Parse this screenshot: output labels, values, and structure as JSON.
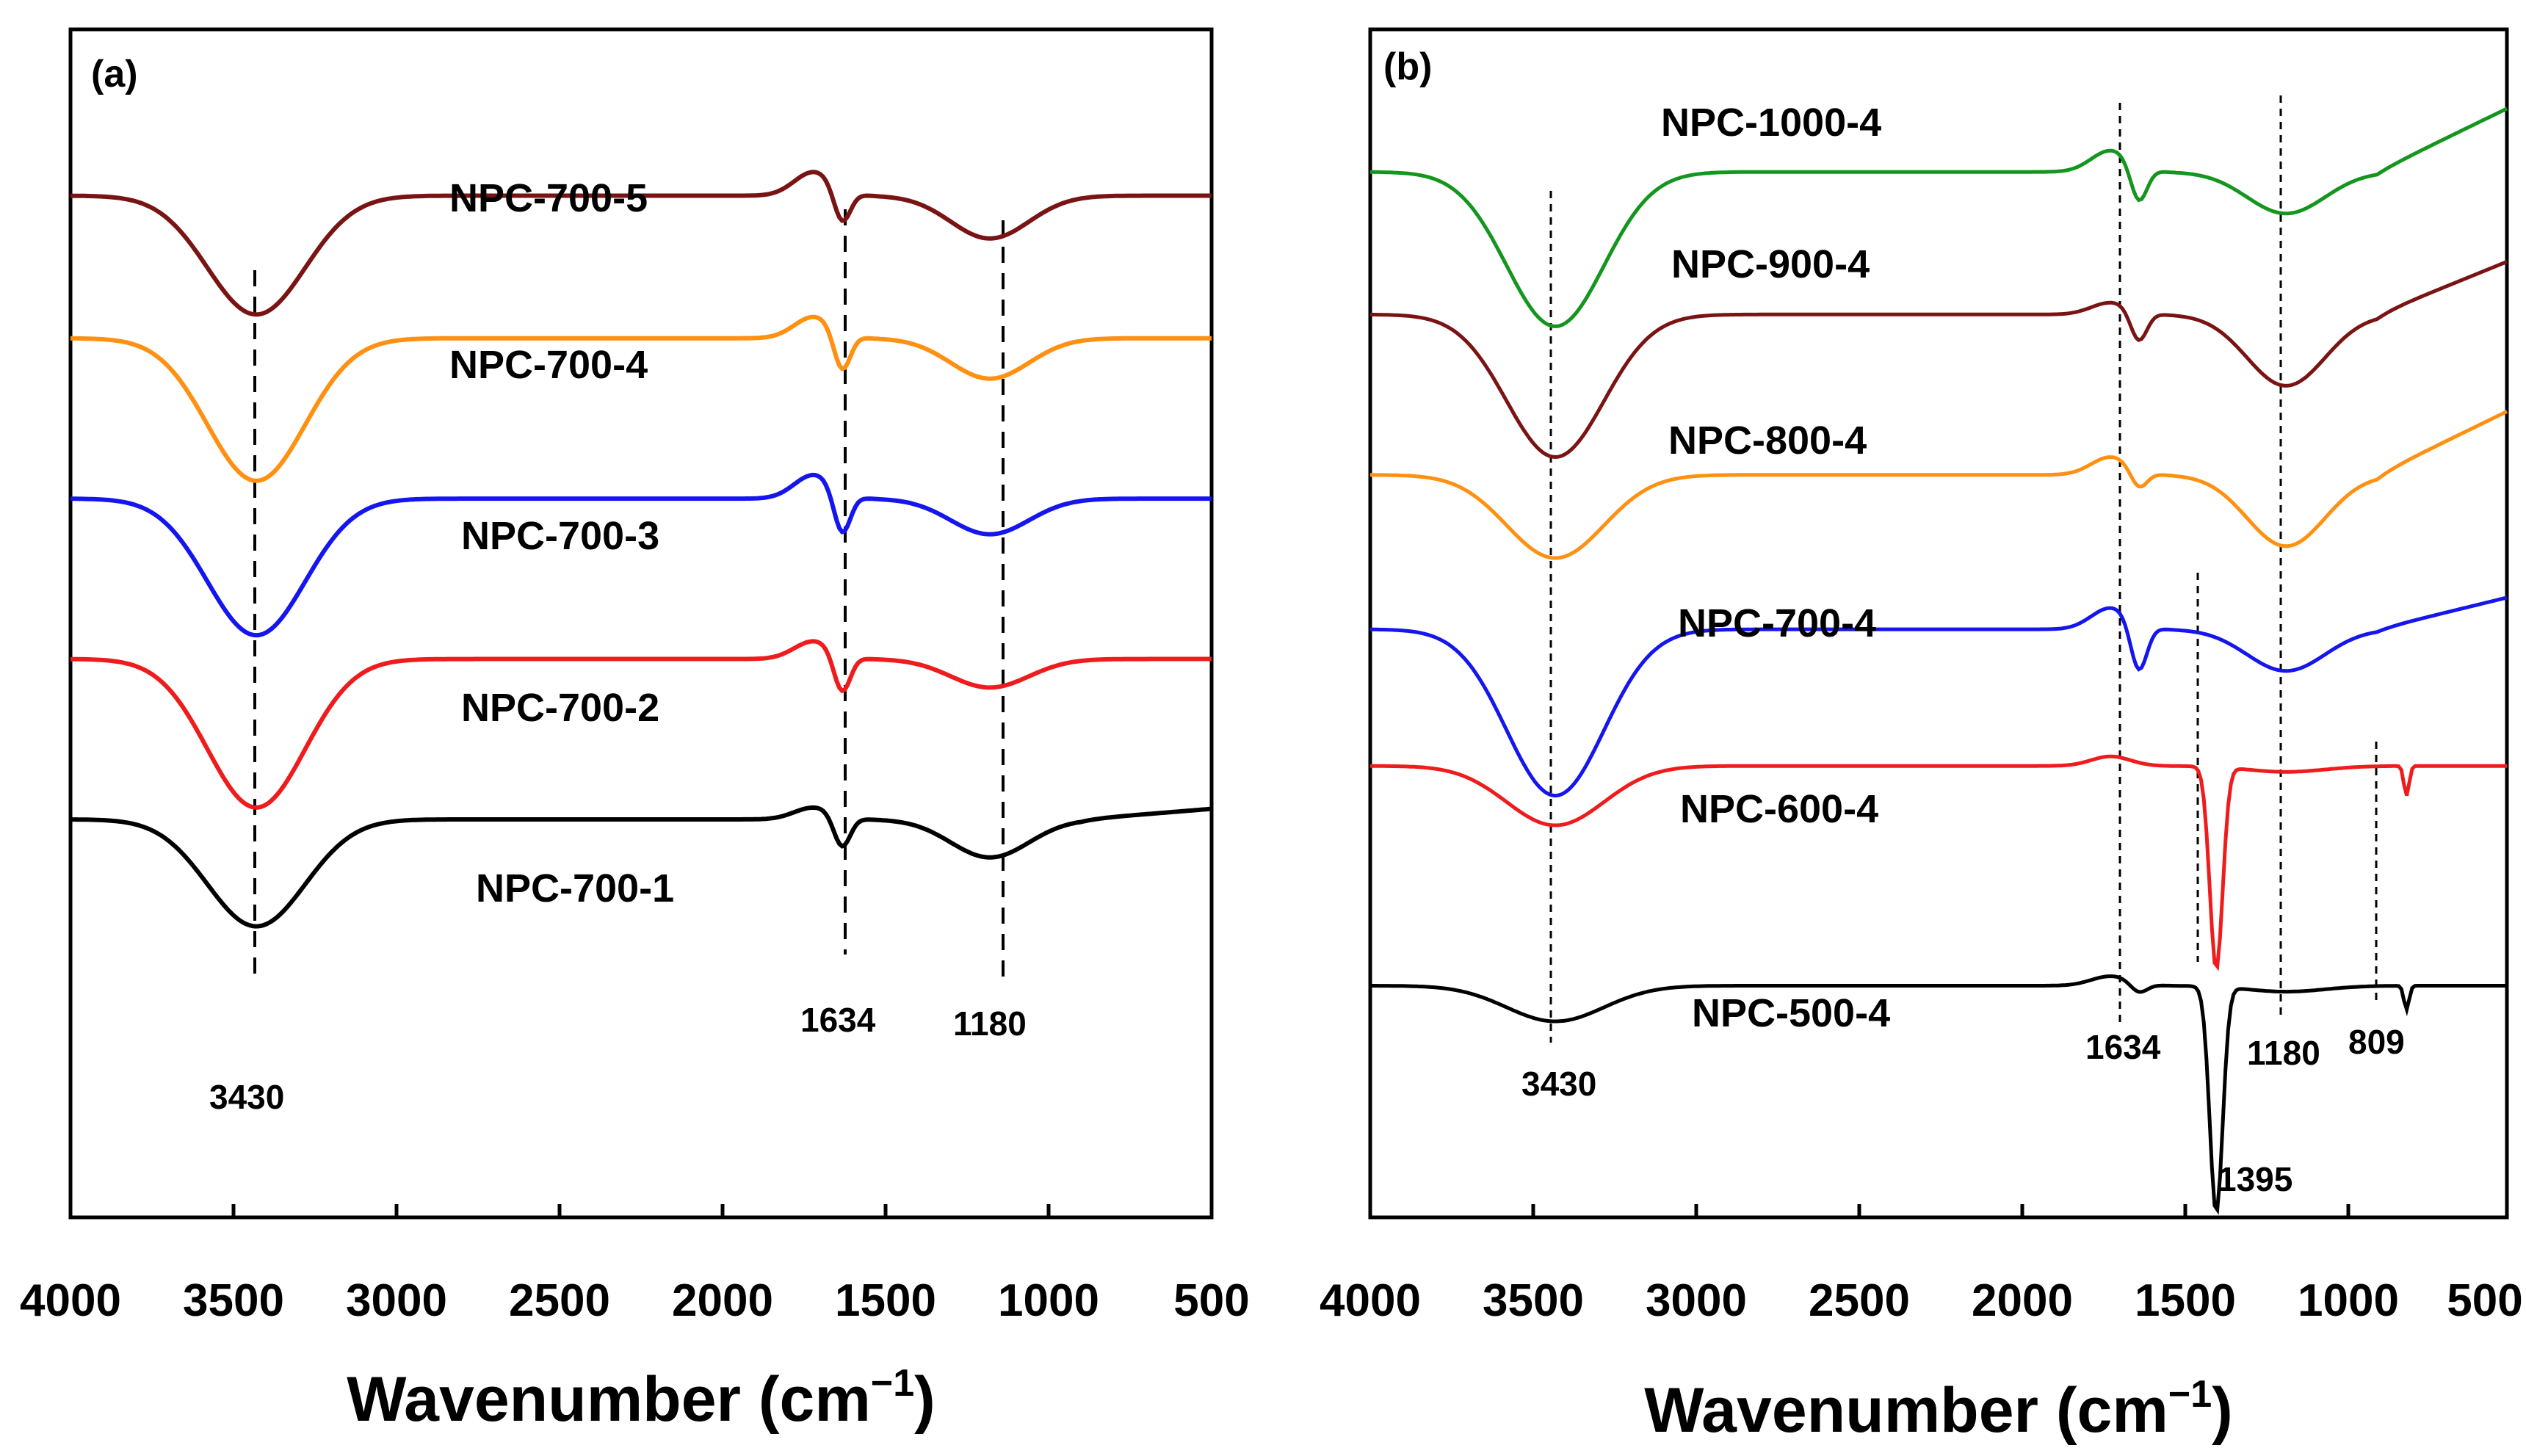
{
  "chart_data": [
    {
      "panel": "(a)",
      "type": "line",
      "xlabel": "Wavenumber (cm",
      "xlabel_sup": "−1",
      "xlabel_end": ")",
      "xlim": [
        4000,
        500
      ],
      "xticks": [
        4000,
        3500,
        3000,
        2500,
        2000,
        1500,
        1000,
        500
      ],
      "ylabel": "",
      "grid": false,
      "series": [
        {
          "name": "NPC-700-5",
          "color": "#7a1414",
          "baseline": 0.86,
          "depth": 0.1,
          "d1634": 0.028,
          "d1180": 0.036,
          "bump": 0.02,
          "slope": 0.0
        },
        {
          "name": "NPC-700-4",
          "color": "#ff9012",
          "baseline": 0.74,
          "depth": 0.12,
          "d1634": 0.032,
          "d1180": 0.034,
          "bump": 0.018,
          "slope": 0.0
        },
        {
          "name": "NPC-700-3",
          "color": "#1515ee",
          "baseline": 0.605,
          "depth": 0.115,
          "d1634": 0.035,
          "d1180": 0.03,
          "bump": 0.02,
          "slope": 0.0
        },
        {
          "name": "NPC-700-2",
          "color": "#ee1c1c",
          "baseline": 0.47,
          "depth": 0.125,
          "d1634": 0.032,
          "d1180": 0.024,
          "bump": 0.015,
          "slope": 0.0
        },
        {
          "name": "NPC-700-1",
          "color": "#000000",
          "baseline": 0.335,
          "depth": 0.09,
          "d1634": 0.026,
          "d1180": 0.032,
          "bump": 0.01,
          "slope": 0.01
        }
      ],
      "peaks": [
        {
          "x": 3430,
          "label": "3430"
        },
        {
          "x": 1634,
          "label": "1634"
        },
        {
          "x": 1180,
          "label": "1180"
        }
      ]
    },
    {
      "panel": "(b)",
      "type": "line",
      "xlabel": "Wavenumber (cm",
      "xlabel_sup": "−1",
      "xlabel_end": ")",
      "xlim": [
        4000,
        500
      ],
      "xticks": [
        4000,
        3500,
        3000,
        2500,
        2000,
        1500,
        1000,
        500
      ],
      "ylabel": "",
      "grid": false,
      "series": [
        {
          "name": "NPC-1000-4",
          "color": "#14961e",
          "baseline": 0.88,
          "depth": 0.13,
          "d1634": 0.03,
          "d1180": 0.035,
          "bump": 0.018,
          "slope": 0.06
        },
        {
          "name": "NPC-900-4",
          "color": "#7a1414",
          "baseline": 0.76,
          "depth": 0.12,
          "d1634": 0.025,
          "d1180": 0.06,
          "bump": 0.01,
          "slope": 0.05
        },
        {
          "name": "NPC-800-4",
          "color": "#ff9012",
          "baseline": 0.625,
          "depth": 0.07,
          "d1634": 0.015,
          "d1180": 0.06,
          "bump": 0.015,
          "slope": 0.06
        },
        {
          "name": "NPC-700-4",
          "color": "#1515ee",
          "baseline": 0.495,
          "depth": 0.14,
          "d1634": 0.04,
          "d1180": 0.035,
          "bump": 0.018,
          "slope": 0.03
        },
        {
          "name": "NPC-600-4",
          "color": "#ee1c1c",
          "baseline": 0.38,
          "depth": 0.05,
          "d1634": 0.0,
          "d1180": 0.005,
          "bump": 0.008,
          "slope": 0.0,
          "d1395": 0.17,
          "d809": 0.025
        },
        {
          "name": "NPC-500-4",
          "color": "#000000",
          "baseline": 0.195,
          "depth": 0.03,
          "d1634": 0.008,
          "d1180": 0.005,
          "bump": 0.008,
          "slope": 0.0,
          "d1395": 0.19,
          "d809": 0.02
        }
      ],
      "peaks": [
        {
          "x": 3430,
          "label": "3430"
        },
        {
          "x": 1634,
          "label": "1634"
        },
        {
          "x": 1395,
          "label": "1395"
        },
        {
          "x": 1180,
          "label": "1180"
        },
        {
          "x": 809,
          "label": "809"
        }
      ]
    }
  ]
}
